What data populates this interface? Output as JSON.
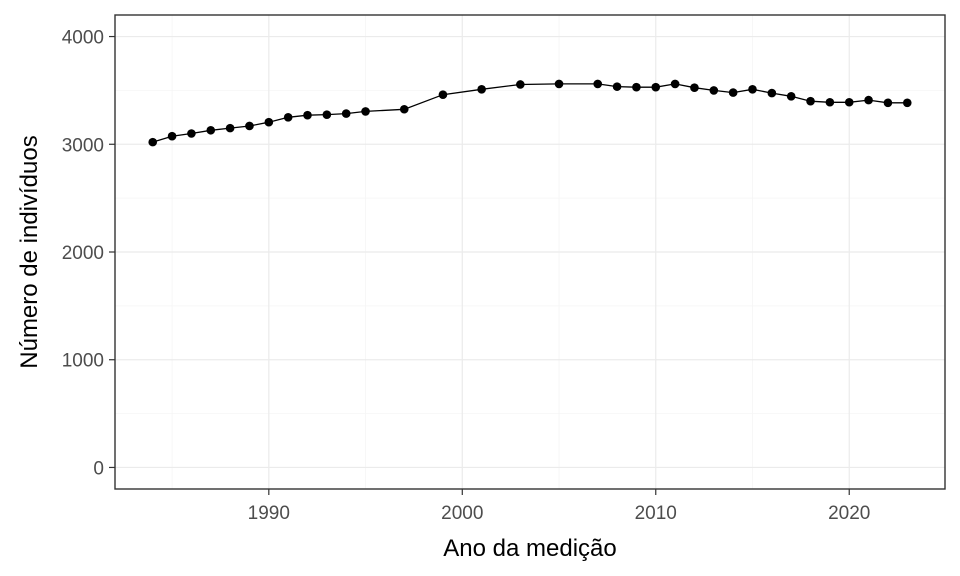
{
  "chart_data": {
    "type": "line",
    "xlabel": "Ano da medição",
    "ylabel": "Número de indivíduos",
    "xlim": [
      1982.05,
      2024.95
    ],
    "ylim": [
      -200,
      4200
    ],
    "x_ticks": [
      1990,
      2000,
      2010,
      2020
    ],
    "y_ticks": [
      0,
      1000,
      2000,
      3000,
      4000
    ],
    "grid": true,
    "legend": "none",
    "colors": {
      "series": "#000000",
      "grid_major": "#ebebeb",
      "grid_minor": "#f5f5f5",
      "panel_border": "#333333"
    },
    "series": [
      {
        "x": [
          1984,
          1985,
          1986,
          1987,
          1988,
          1989,
          1990,
          1991,
          1992,
          1993,
          1994,
          1995,
          1997,
          1999,
          2001,
          2003,
          2005,
          2007,
          2008,
          2009,
          2010,
          2011,
          2012,
          2013,
          2014,
          2015,
          2016,
          2017,
          2018,
          2019,
          2020,
          2021,
          2022,
          2023
        ],
        "y": [
          3020,
          3075,
          3100,
          3130,
          3150,
          3170,
          3205,
          3250,
          3270,
          3275,
          3285,
          3305,
          3325,
          3460,
          3510,
          3555,
          3560,
          3560,
          3535,
          3530,
          3530,
          3560,
          3525,
          3500,
          3480,
          3510,
          3475,
          3445,
          3400,
          3390,
          3390,
          3410,
          3385,
          3385
        ]
      }
    ]
  }
}
